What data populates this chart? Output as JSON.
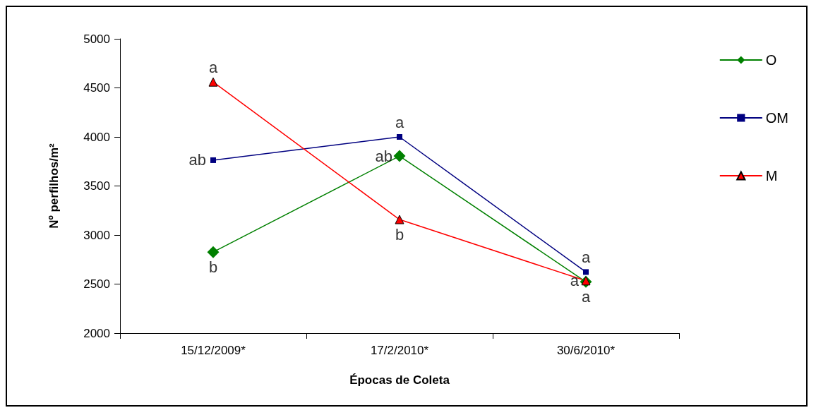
{
  "chart_data": {
    "type": "line",
    "xlabel": "Épocas de Coleta",
    "ylabel": "Nº perfilhos/m²",
    "categories": [
      "15/12/2009*",
      "17/2/2010*",
      "30/6/2010*"
    ],
    "series": [
      {
        "name": "O",
        "color": "#008000",
        "marker": "diamond",
        "values": [
          2826,
          3805,
          2523
        ]
      },
      {
        "name": "OM",
        "color": "#000080",
        "marker": "square",
        "values": [
          3763,
          4000,
          2623
        ]
      },
      {
        "name": "M",
        "color": "#ff0000",
        "marker": "triangle",
        "values": [
          4560,
          3158,
          2534
        ]
      }
    ],
    "annotations": [
      {
        "text": "b",
        "x": "15/12/2009*",
        "y": 2826
      },
      {
        "text": "ab",
        "x": "15/12/2009*",
        "y": 3763
      },
      {
        "text": "a",
        "x": "15/12/2009*",
        "y": 4560
      },
      {
        "text": "ab",
        "x": "17/2/2010*",
        "y": 3805
      },
      {
        "text": "a",
        "x": "17/2/2010*",
        "y": 4000
      },
      {
        "text": "b",
        "x": "17/2/2010*",
        "y": 3158
      },
      {
        "text": "a",
        "x": "30/6/2010*",
        "y": 2523
      },
      {
        "text": "a",
        "x": "30/6/2010*",
        "y": 2623
      },
      {
        "text": "a",
        "x": "30/6/2010*",
        "y": 2534
      }
    ],
    "ylim": [
      2000,
      5000
    ],
    "yticks": [
      2000,
      2500,
      3000,
      3500,
      4000,
      4500,
      5000
    ],
    "grid": false,
    "legend": "right",
    "line_style": "solid"
  }
}
